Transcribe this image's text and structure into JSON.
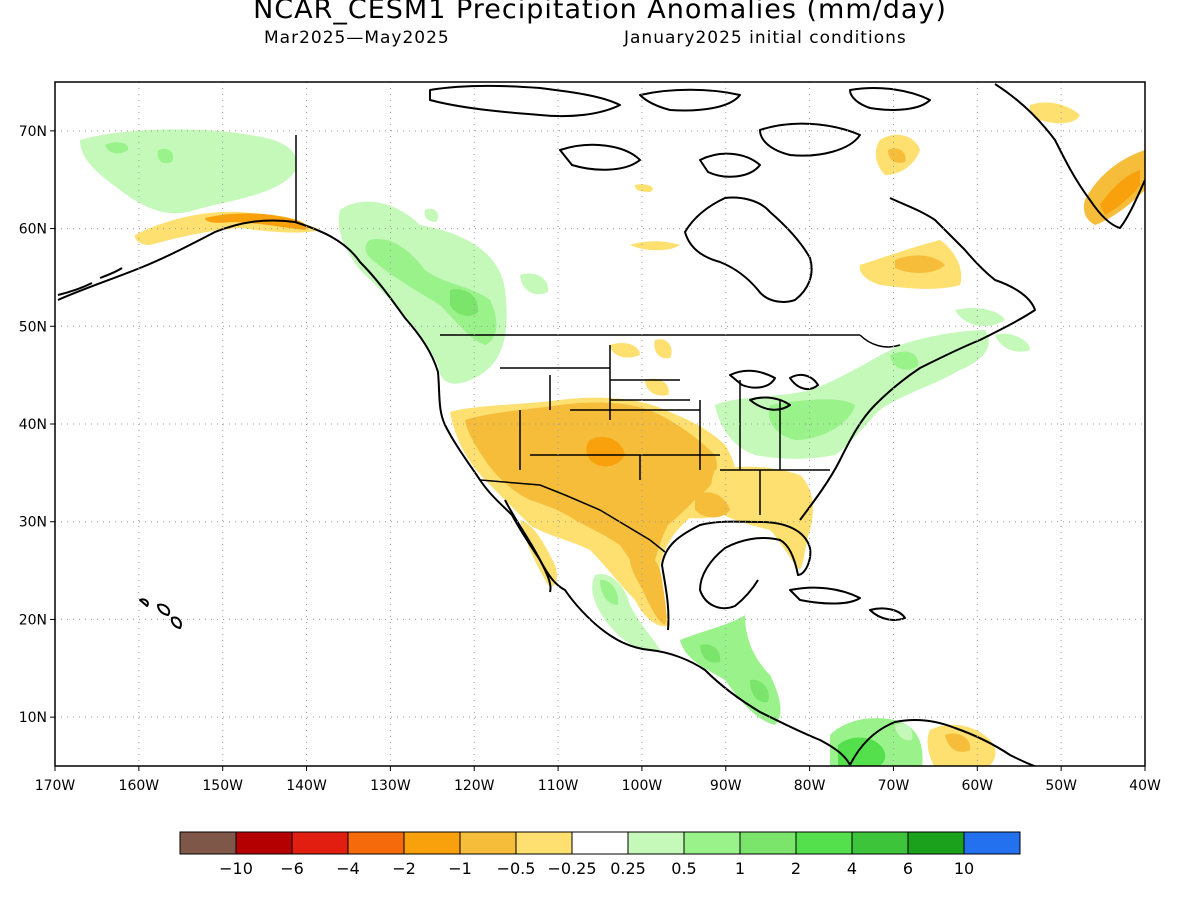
{
  "title": "NCAR_CESM1 Precipitation Anomalies (mm/day)",
  "subtitle_left": "Mar2025—May2025",
  "subtitle_right": "January2025 initial conditions",
  "map": {
    "lat_labels": [
      "70N",
      "60N",
      "50N",
      "40N",
      "30N",
      "20N",
      "10N"
    ],
    "lon_labels": [
      "170W",
      "160W",
      "150W",
      "140W",
      "130W",
      "120W",
      "110W",
      "100W",
      "90W",
      "80W",
      "70W",
      "60W",
      "50W",
      "40W"
    ],
    "lon_range": [
      -170,
      -40
    ],
    "lat_range": [
      5,
      75
    ],
    "grid": "dotted"
  },
  "colorbar": {
    "colors": [
      "#7f5748",
      "#b40000",
      "#e11e0f",
      "#f56a0a",
      "#f9a10c",
      "#f5bd3a",
      "#fde070",
      "#ffffff",
      "#c5f9ba",
      "#9af28b",
      "#7be56b",
      "#54e04c",
      "#3dc43a",
      "#1ba11b",
      "#2371ef"
    ],
    "labels": [
      "−10",
      "−6",
      "−4",
      "−2",
      "−1",
      "−0.5",
      "−0.25",
      "0.25",
      "0.5",
      "1",
      "2",
      "4",
      "6",
      "10"
    ]
  }
}
